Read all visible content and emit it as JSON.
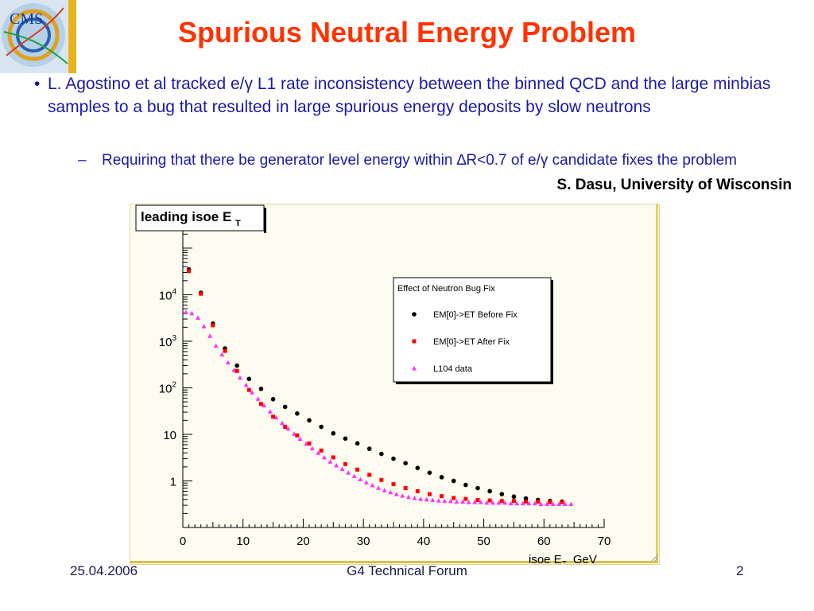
{
  "slide": {
    "title": "Spurious Neutral Energy Problem",
    "bullet_main": "L. Agostino et al tracked e/γ L1 rate inconsistency between the binned QCD and the large minbias samples to a bug that resulted in large spurious energy deposits by slow neutrons",
    "bullet_sub": "Requiring that there be generator level energy within ∆R<0.7 of e/γ candidate fixes the problem",
    "credit": "S. Dasu, University of Wisconsin",
    "footer_date": "25.04.2006",
    "footer_center": "G4 Technical Forum",
    "footer_page": "2",
    "logo_text": "CMS"
  },
  "colors": {
    "title": "#ff3300",
    "body_text": "#1a1aa6",
    "before_fix": "#000000",
    "after_fix": "#ff0000",
    "l104": "#ff33ff"
  },
  "chart_data": {
    "type": "scatter",
    "title": "leading isoe E",
    "title_subscript": "T",
    "xlabel": "isoe E",
    "xlabel_subscript": "T",
    "xlabel_unit": "GeV",
    "xlim": [
      0,
      70
    ],
    "y_scale": "log",
    "ylim": [
      0.1,
      300000
    ],
    "x_ticks": [
      0,
      10,
      20,
      30,
      40,
      50,
      60,
      70
    ],
    "y_ticks": [
      {
        "value": 1,
        "label": "1"
      },
      {
        "value": 10,
        "label": "10"
      },
      {
        "value": 100,
        "label": "10",
        "exp": "2"
      },
      {
        "value": 1000,
        "label": "10",
        "exp": "3"
      },
      {
        "value": 10000,
        "label": "10",
        "exp": "4"
      }
    ],
    "legend": {
      "title": "Effect of Neutron Bug Fix",
      "position": "top-right"
    },
    "series": [
      {
        "name": "EM[0]->ET Before Fix",
        "marker": "circle",
        "color": "#000000",
        "x": [
          1,
          3,
          5,
          7,
          9,
          11,
          13,
          15,
          17,
          19,
          21,
          23,
          25,
          27,
          29,
          31,
          33,
          35,
          37,
          39,
          41,
          43,
          45,
          47,
          49,
          51,
          53,
          55,
          57,
          59,
          61,
          63
        ],
        "y": [
          35000,
          11000,
          2400,
          700,
          300,
          155,
          95,
          57,
          39,
          28,
          20,
          14.5,
          10.5,
          8.1,
          6.4,
          4.9,
          3.8,
          3.0,
          2.4,
          1.9,
          1.5,
          1.2,
          1.0,
          0.82,
          0.7,
          0.6,
          0.52,
          0.46,
          0.42,
          0.39,
          0.37,
          0.36
        ]
      },
      {
        "name": "EM[0]->ET After Fix",
        "marker": "square",
        "color": "#ff0000",
        "x": [
          1,
          3,
          5,
          7,
          9,
          11,
          13,
          15,
          17,
          19,
          21,
          23,
          25,
          27,
          29,
          31,
          33,
          35,
          37,
          39,
          41,
          43,
          45,
          47,
          49,
          51,
          53,
          55,
          57,
          59,
          61,
          63
        ],
        "y": [
          32000,
          10500,
          2200,
          620,
          230,
          90,
          45,
          24,
          14.5,
          9.5,
          6.4,
          4.5,
          3.2,
          2.3,
          1.75,
          1.35,
          1.05,
          0.85,
          0.7,
          0.6,
          0.52,
          0.47,
          0.43,
          0.41,
          0.39,
          0.38,
          0.37,
          0.37,
          0.36,
          0.36,
          0.35,
          0.35
        ]
      },
      {
        "name": "L104 data",
        "marker": "triangle",
        "color": "#ff33ff",
        "x": [
          0.5,
          1.5,
          2.5,
          3.5,
          4.5,
          5.5,
          6.5,
          7.5,
          8.5,
          9.5,
          10.5,
          11.5,
          12.5,
          13.5,
          14.5,
          15.5,
          16.5,
          17.5,
          18.5,
          19.5,
          20.5,
          21.5,
          22.5,
          23.5,
          24.5,
          25.5,
          26.5,
          27.5,
          28.5,
          29.5,
          30.5,
          31.5,
          32.5,
          33.5,
          34.5,
          35.5,
          36.5,
          37.5,
          38.5,
          39.5,
          40.5,
          41.5,
          42.5,
          43.5,
          44.5,
          45.5,
          46.5,
          47.5,
          48.5,
          49.5,
          50.5,
          51.5,
          52.5,
          53.5,
          54.5,
          55.5,
          56.5,
          57.5,
          58.5,
          59.5,
          60.5,
          61.5,
          62.5,
          63.5,
          64.5
        ],
        "y": [
          4200,
          4000,
          3200,
          2100,
          1300,
          800,
          520,
          350,
          240,
          165,
          115,
          80,
          58,
          42,
          31,
          23,
          17.5,
          13.3,
          10.3,
          8.0,
          6.3,
          5.0,
          4.0,
          3.2,
          2.6,
          2.15,
          1.8,
          1.5,
          1.27,
          1.08,
          0.93,
          0.81,
          0.71,
          0.63,
          0.57,
          0.52,
          0.48,
          0.45,
          0.43,
          0.41,
          0.4,
          0.39,
          0.38,
          0.37,
          0.37,
          0.36,
          0.36,
          0.35,
          0.35,
          0.35,
          0.34,
          0.34,
          0.34,
          0.34,
          0.33,
          0.33,
          0.33,
          0.33,
          0.33,
          0.32,
          0.32,
          0.32,
          0.32,
          0.32,
          0.32
        ]
      }
    ]
  }
}
